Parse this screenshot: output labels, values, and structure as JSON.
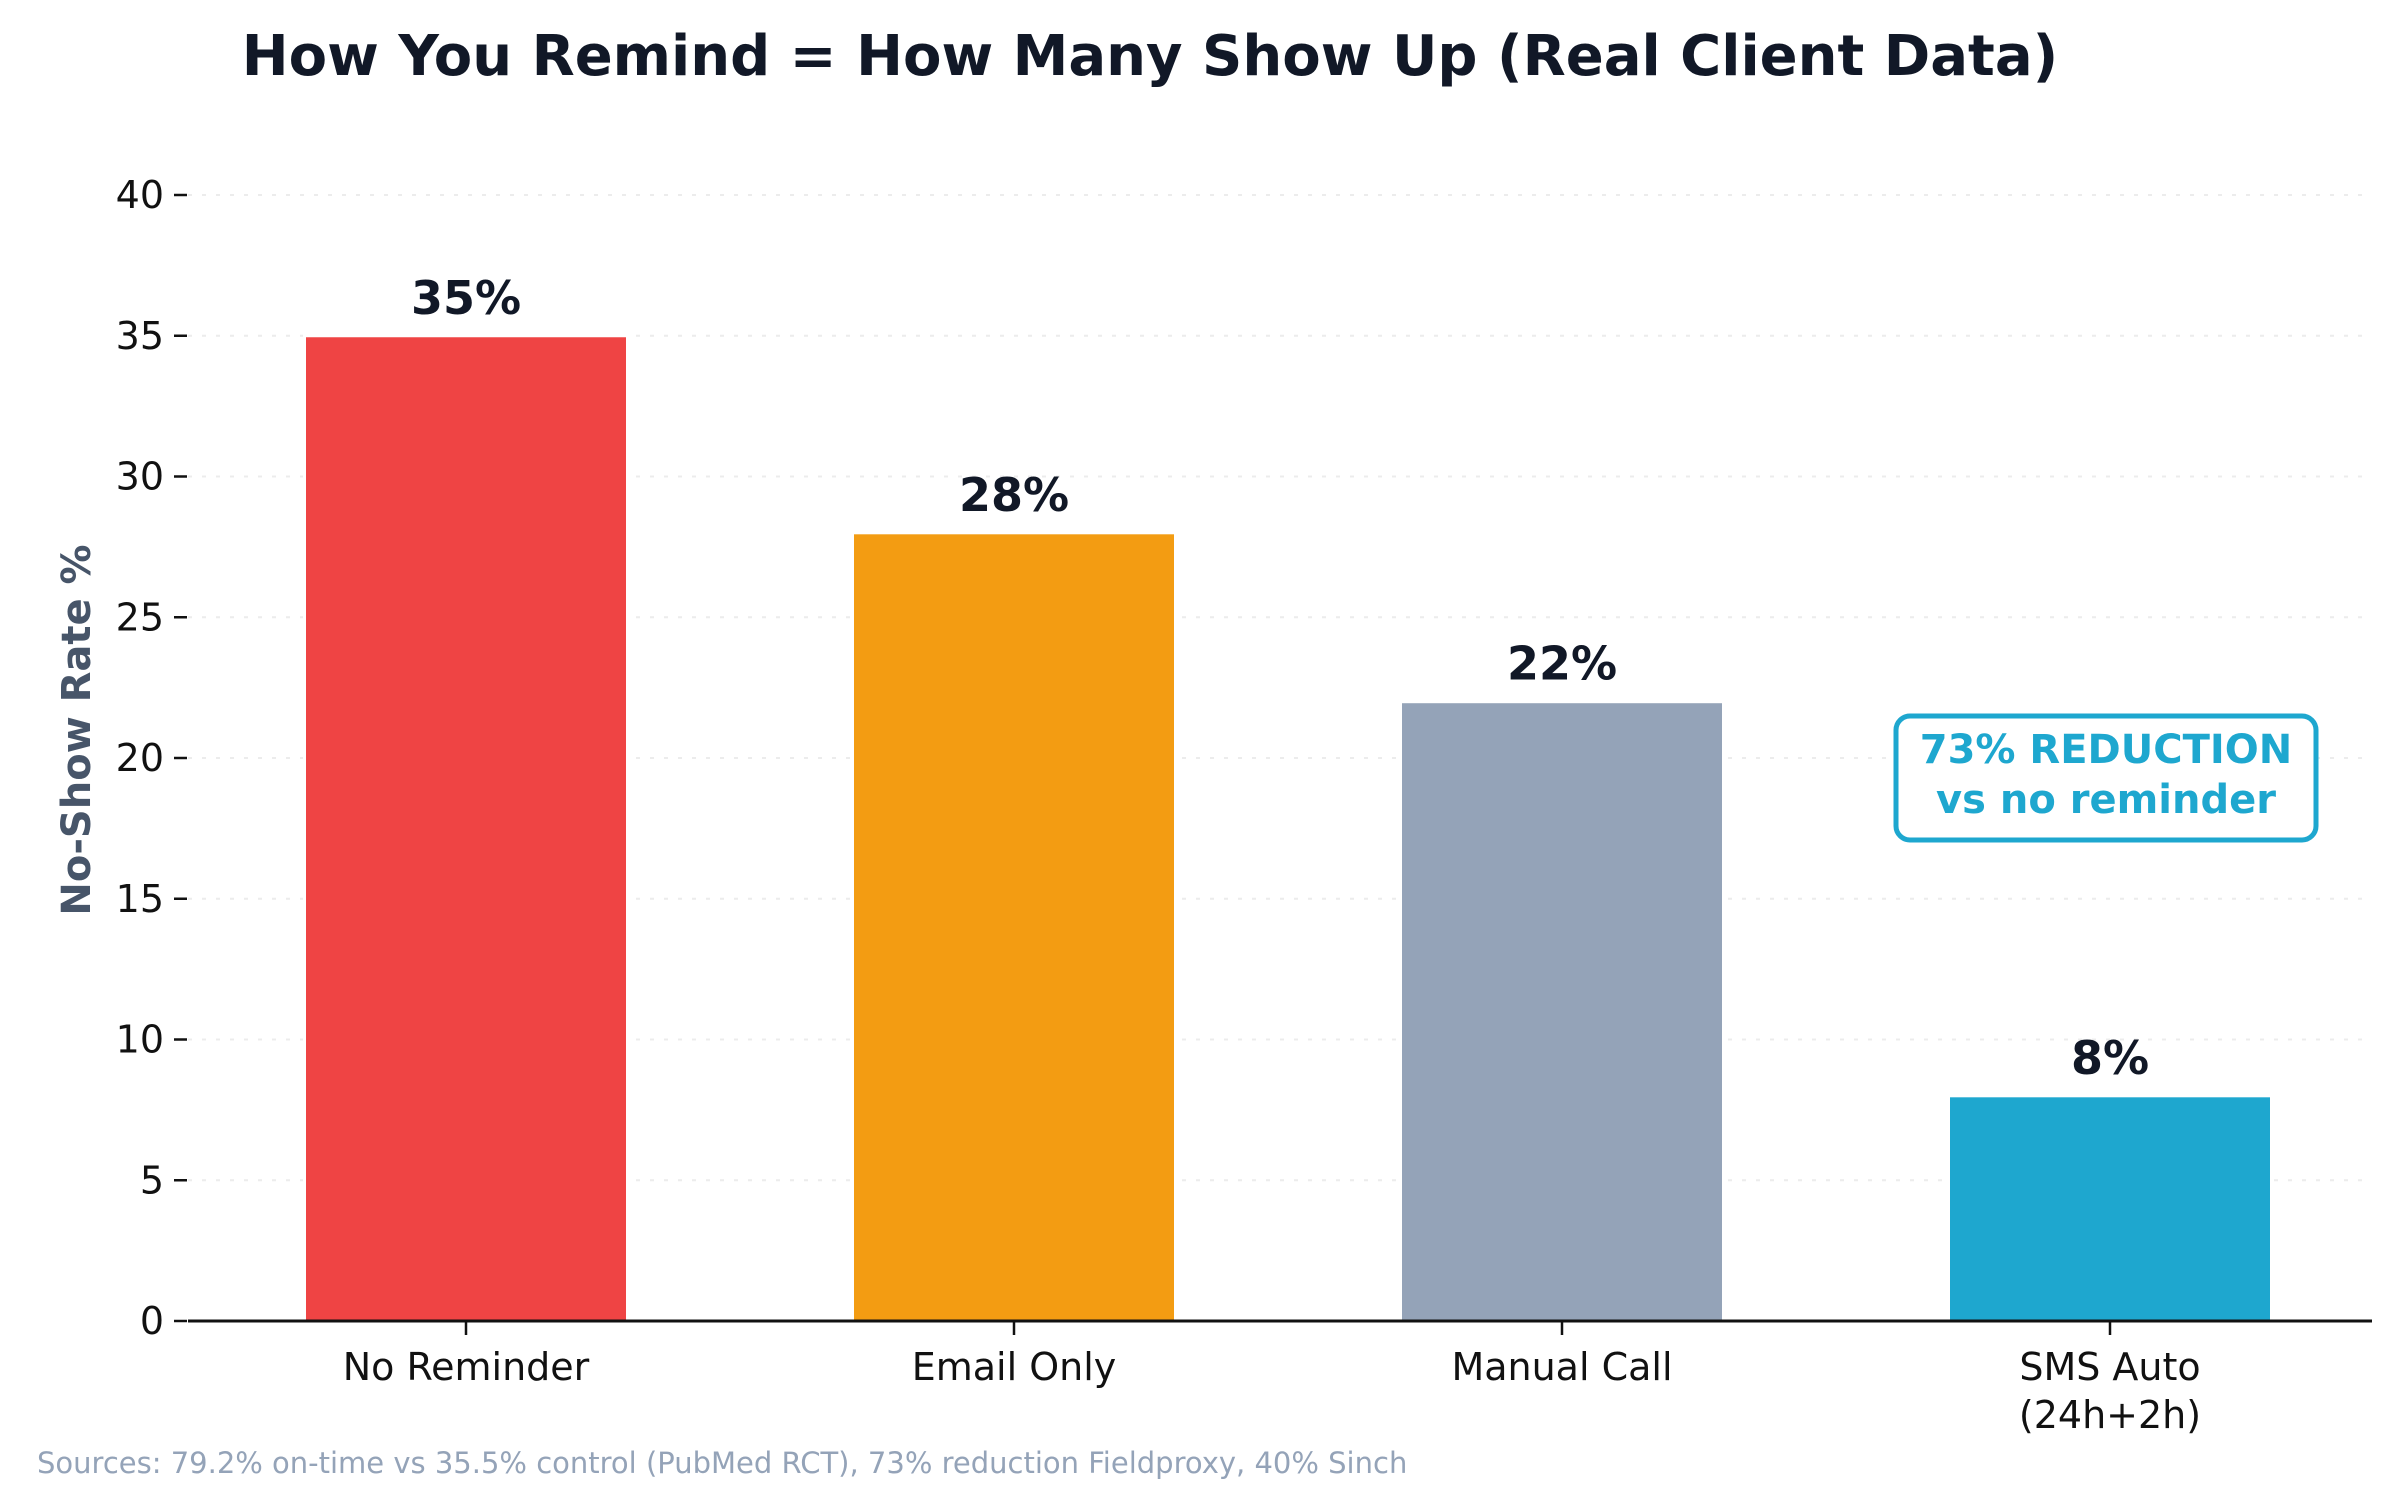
{
  "chart_data": {
    "type": "bar",
    "title": "How You Remind = How Many Show Up (Real Client Data)",
    "xlabel": "",
    "ylabel": "No-Show Rate %",
    "ylim": [
      0,
      40
    ],
    "yticks": [
      0,
      5,
      10,
      15,
      20,
      25,
      30,
      35,
      40
    ],
    "grid": true,
    "categories": [
      [
        "No Reminder"
      ],
      [
        "Email Only"
      ],
      [
        "Manual Call"
      ],
      [
        "SMS Auto",
        "(24h+2h)"
      ]
    ],
    "values": [
      35,
      28,
      22,
      8
    ],
    "value_labels": [
      "35%",
      "28%",
      "22%",
      "8%"
    ],
    "colors": [
      "#ef4444",
      "#f39c12",
      "#94a3b8",
      "#1ea7cf"
    ],
    "annotation": {
      "lines": [
        "73% REDUCTION",
        "vs no reminder"
      ],
      "color": "#1ea7cf"
    },
    "source_note": "Sources: 79.2% on-time vs 35.5% control (PubMed RCT), 73% reduction Fieldproxy, 40% Sinch"
  }
}
